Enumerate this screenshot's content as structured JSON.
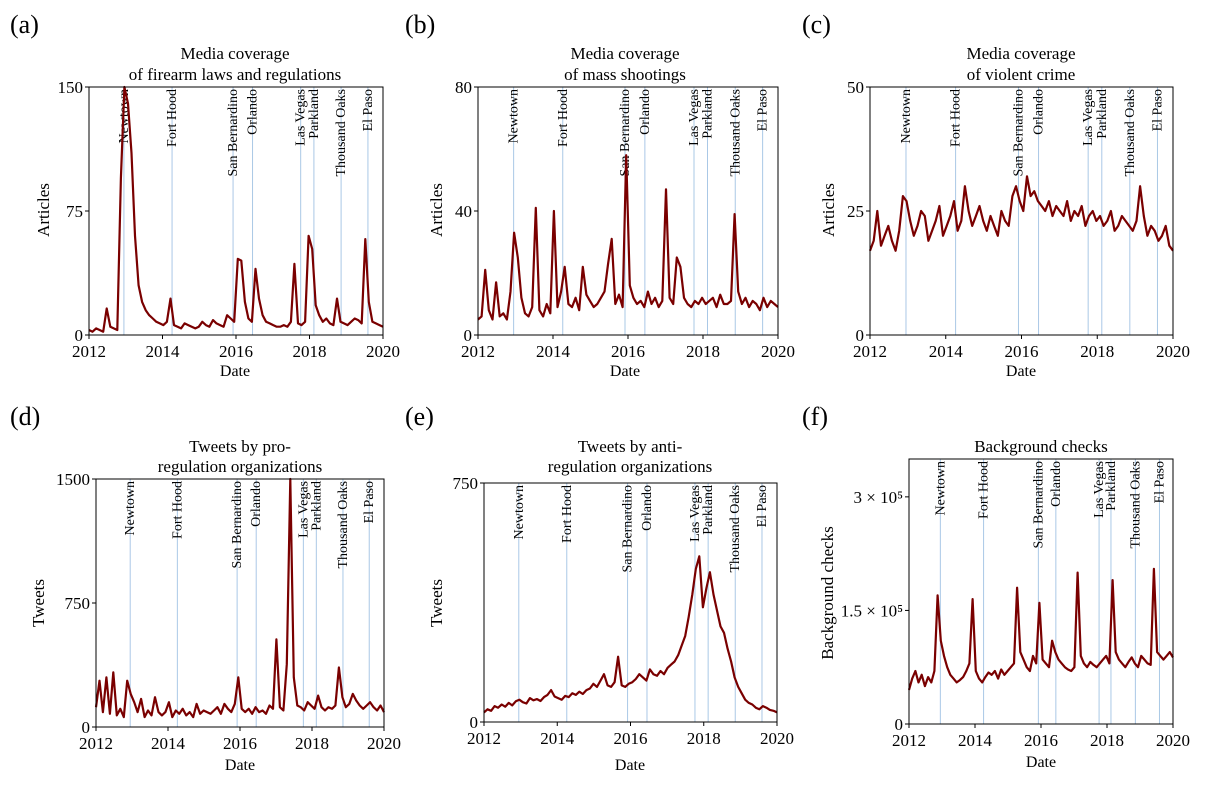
{
  "colors": {
    "series": "#7a0000",
    "event_line": "#aac8e6",
    "axis": "#000000"
  },
  "events": [
    "Newtown",
    "Fort Hood",
    "San Bernardino",
    "Orlando",
    "Las Vegas",
    "Parkland",
    "Thousand Oaks",
    "El Paso"
  ],
  "chart_data": [
    {
      "type": "line",
      "panel": "(a)",
      "title": [
        "Media coverage",
        "of firearm laws and regulations"
      ],
      "xlabel": "Date",
      "ylabel": "Articles",
      "xlim": [
        2012,
        2020
      ],
      "ylim": [
        0,
        150
      ],
      "xticks": [
        2012,
        2014,
        2016,
        2018,
        2020
      ],
      "yticks": [
        0,
        75,
        150
      ],
      "ytick_labels": [
        "0",
        "75",
        "150"
      ],
      "event_dates": [
        2012.95,
        2014.26,
        2015.92,
        2016.45,
        2017.76,
        2018.12,
        2018.86,
        2019.59
      ],
      "series": [
        {
          "values": [
            3,
            2,
            4,
            3,
            2,
            16,
            5,
            4,
            3,
            95,
            150,
            140,
            110,
            60,
            30,
            20,
            15,
            12,
            10,
            8,
            7,
            6,
            8,
            22,
            6,
            5,
            4,
            7,
            6,
            5,
            4,
            5,
            8,
            6,
            5,
            9,
            7,
            6,
            5,
            12,
            10,
            8,
            46,
            45,
            20,
            10,
            8,
            40,
            22,
            12,
            8,
            7,
            6,
            5,
            5,
            6,
            5,
            8,
            43,
            7,
            6,
            8,
            60,
            52,
            18,
            12,
            8,
            10,
            7,
            6,
            22,
            8,
            7,
            6,
            8,
            10,
            9,
            7,
            58,
            20,
            8,
            7,
            6,
            5
          ]
        }
      ]
    },
    {
      "type": "line",
      "panel": "(b)",
      "title": [
        "Media coverage",
        "of mass shootings"
      ],
      "xlabel": "Date",
      "ylabel": "Articles",
      "xlim": [
        2012,
        2020
      ],
      "ylim": [
        0,
        80
      ],
      "xticks": [
        2012,
        2014,
        2016,
        2018,
        2020
      ],
      "yticks": [
        0,
        40,
        80
      ],
      "ytick_labels": [
        "0",
        "40",
        "80"
      ],
      "event_dates": [
        2012.95,
        2014.26,
        2015.92,
        2016.45,
        2017.76,
        2018.12,
        2018.86,
        2019.59
      ],
      "series": [
        {
          "values": [
            5,
            6,
            21,
            8,
            5,
            17,
            6,
            7,
            5,
            14,
            33,
            25,
            12,
            7,
            6,
            9,
            41,
            8,
            6,
            10,
            7,
            40,
            9,
            14,
            22,
            10,
            9,
            12,
            8,
            22,
            13,
            11,
            9,
            10,
            12,
            14,
            23,
            31,
            10,
            13,
            9,
            58,
            16,
            12,
            10,
            11,
            9,
            14,
            10,
            12,
            9,
            11,
            47,
            12,
            10,
            25,
            22,
            12,
            10,
            9,
            11,
            10,
            12,
            10,
            11,
            12,
            9,
            13,
            10,
            10,
            11,
            39,
            14,
            10,
            12,
            9,
            11,
            10,
            8,
            12,
            9,
            11,
            10,
            9
          ]
        }
      ]
    },
    {
      "type": "line",
      "panel": "(c)",
      "title": [
        "Media coverage",
        "of violent crime"
      ],
      "xlabel": "Date",
      "ylabel": "Articles",
      "xlim": [
        2012,
        2020
      ],
      "ylim": [
        0,
        50
      ],
      "xticks": [
        2012,
        2014,
        2016,
        2018,
        2020
      ],
      "yticks": [
        0,
        25,
        50
      ],
      "ytick_labels": [
        "0",
        "25",
        "50"
      ],
      "event_dates": [
        2012.95,
        2014.26,
        2015.92,
        2016.45,
        2017.76,
        2018.12,
        2018.86,
        2019.59
      ],
      "series": [
        {
          "values": [
            17,
            19,
            25,
            18,
            20,
            22,
            19,
            17,
            21,
            28,
            27,
            23,
            20,
            22,
            25,
            24,
            19,
            21,
            23,
            26,
            20,
            22,
            24,
            27,
            21,
            23,
            30,
            25,
            22,
            24,
            26,
            23,
            21,
            24,
            22,
            20,
            25,
            23,
            22,
            28,
            30,
            27,
            25,
            32,
            28,
            29,
            27,
            26,
            25,
            27,
            24,
            26,
            25,
            24,
            27,
            23,
            25,
            24,
            26,
            22,
            24,
            25,
            23,
            24,
            22,
            23,
            25,
            21,
            22,
            24,
            23,
            22,
            21,
            23,
            30,
            24,
            20,
            22,
            21,
            19,
            20,
            22,
            18,
            17
          ]
        }
      ]
    },
    {
      "type": "line",
      "panel": "(d)",
      "title": [
        "Tweets by pro-",
        "regulation organizations"
      ],
      "xlabel": "Date",
      "ylabel": "Tweets",
      "xlim": [
        2012,
        2020
      ],
      "ylim": [
        0,
        1500
      ],
      "xticks": [
        2012,
        2014,
        2016,
        2018,
        2020
      ],
      "yticks": [
        0,
        750,
        1500
      ],
      "ytick_labels": [
        "0",
        "750",
        "1500"
      ],
      "event_dates": [
        2012.95,
        2014.26,
        2015.92,
        2016.45,
        2017.76,
        2018.12,
        2018.86,
        2019.59
      ],
      "series": [
        {
          "values": [
            120,
            280,
            90,
            300,
            80,
            330,
            70,
            110,
            60,
            280,
            200,
            150,
            90,
            170,
            60,
            100,
            70,
            180,
            90,
            70,
            90,
            150,
            60,
            100,
            80,
            110,
            70,
            90,
            60,
            140,
            80,
            100,
            90,
            80,
            100,
            120,
            80,
            140,
            110,
            90,
            140,
            300,
            110,
            90,
            110,
            80,
            120,
            90,
            100,
            80,
            130,
            110,
            530,
            120,
            100,
            380,
            1500,
            300,
            130,
            120,
            100,
            150,
            130,
            110,
            190,
            120,
            100,
            120,
            110,
            130,
            360,
            180,
            120,
            140,
            200,
            160,
            130,
            110,
            130,
            150,
            120,
            100,
            130,
            90
          ]
        }
      ]
    },
    {
      "type": "line",
      "panel": "(e)",
      "title": [
        "Tweets by anti-",
        "regulation organizations"
      ],
      "xlabel": "Date",
      "ylabel": "Tweets",
      "xlim": [
        2012,
        2020
      ],
      "ylim": [
        0,
        750
      ],
      "xticks": [
        2012,
        2014,
        2016,
        2018,
        2020
      ],
      "yticks": [
        0,
        750
      ],
      "ytick_labels": [
        "0",
        "750"
      ],
      "event_dates": [
        2012.95,
        2014.26,
        2015.92,
        2016.45,
        2017.76,
        2018.12,
        2018.86,
        2019.59
      ],
      "series": [
        {
          "values": [
            30,
            40,
            35,
            50,
            45,
            55,
            48,
            60,
            52,
            65,
            70,
            62,
            58,
            75,
            68,
            72,
            66,
            78,
            85,
            100,
            80,
            75,
            70,
            82,
            78,
            90,
            85,
            95,
            88,
            100,
            105,
            120,
            110,
            130,
            150,
            115,
            110,
            125,
            205,
            115,
            110,
            120,
            125,
            135,
            150,
            140,
            130,
            165,
            150,
            145,
            160,
            150,
            170,
            180,
            190,
            210,
            240,
            270,
            330,
            400,
            480,
            520,
            360,
            420,
            470,
            400,
            350,
            300,
            280,
            230,
            190,
            140,
            110,
            90,
            70,
            60,
            55,
            45,
            40,
            50,
            45,
            38,
            35,
            30
          ]
        }
      ]
    },
    {
      "type": "line",
      "panel": "(f)",
      "title": [
        "Background checks"
      ],
      "xlabel": "Date",
      "ylabel": "Background checks",
      "xlim": [
        2012,
        2020
      ],
      "ylim": [
        0,
        350000
      ],
      "xticks": [
        2012,
        2014,
        2016,
        2018,
        2020
      ],
      "yticks": [
        0,
        150000,
        300000
      ],
      "ytick_labels": [
        "0",
        "1.5 × 10⁵",
        "3 × 10⁵"
      ],
      "event_dates": [
        2012.95,
        2014.26,
        2015.92,
        2016.45,
        2017.76,
        2018.12,
        2018.86,
        2019.59
      ],
      "series": [
        {
          "values": [
            45000,
            60000,
            70000,
            55000,
            65000,
            50000,
            62000,
            55000,
            70000,
            170000,
            110000,
            90000,
            75000,
            65000,
            60000,
            55000,
            58000,
            62000,
            70000,
            80000,
            165000,
            70000,
            60000,
            55000,
            62000,
            68000,
            65000,
            70000,
            60000,
            72000,
            65000,
            70000,
            75000,
            80000,
            180000,
            95000,
            85000,
            75000,
            70000,
            90000,
            80000,
            160000,
            85000,
            80000,
            75000,
            110000,
            95000,
            85000,
            80000,
            75000,
            72000,
            70000,
            75000,
            200000,
            90000,
            80000,
            75000,
            82000,
            78000,
            75000,
            80000,
            85000,
            90000,
            80000,
            190000,
            95000,
            85000,
            80000,
            75000,
            82000,
            88000,
            80000,
            75000,
            90000,
            85000,
            80000,
            78000,
            205000,
            95000,
            90000,
            85000,
            90000,
            95000,
            88000
          ]
        }
      ]
    }
  ],
  "panels": [
    {
      "label": "(a)",
      "title1": "Media coverage",
      "title2": "of firearm laws and regulations",
      "xlabel": "Date",
      "ylabel": "Articles"
    },
    {
      "label": "(b)",
      "title1": "Media coverage",
      "title2": "of mass shootings",
      "xlabel": "Date",
      "ylabel": "Articles"
    },
    {
      "label": "(c)",
      "title1": "Media coverage",
      "title2": "of violent crime",
      "xlabel": "Date",
      "ylabel": "Articles"
    },
    {
      "label": "(d)",
      "title1": "Tweets by pro-",
      "title2": "regulation organizations",
      "xlabel": "Date",
      "ylabel": "Tweets"
    },
    {
      "label": "(e)",
      "title1": "Tweets by anti-",
      "title2": "regulation organizations",
      "xlabel": "Date",
      "ylabel": "Tweets"
    },
    {
      "label": "(f)",
      "title1": "Background checks",
      "title2": "",
      "xlabel": "Date",
      "ylabel": "Background checks"
    }
  ]
}
